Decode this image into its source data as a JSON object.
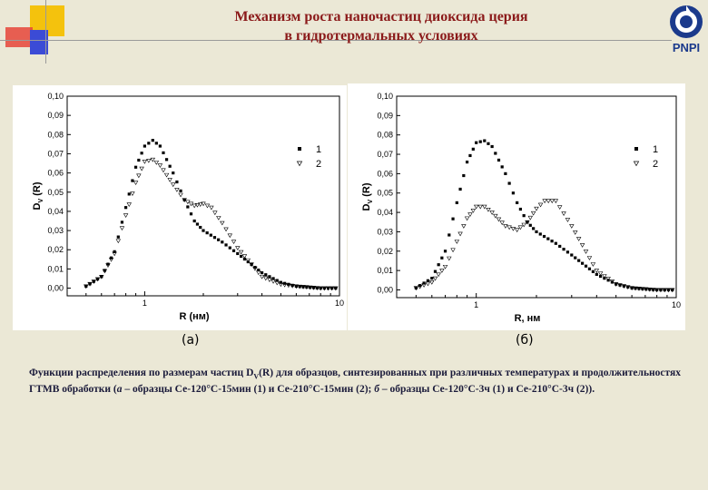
{
  "slide": {
    "title_line1": "Механизм роста наночастиц диоксида церия",
    "title_line2": "в гидротермальных условиях",
    "logo_text": "PNPI",
    "colors": {
      "title": "#8b1a1a",
      "background": "#ebe8d6",
      "deco_yellow": "#f4c20d",
      "deco_blue": "#3b4bd6",
      "deco_red": "#e6453a"
    }
  },
  "figure_labels": {
    "a": "(а)",
    "b": "(б)"
  },
  "caption": {
    "part1": "Функции распределения по размерам частиц D",
    "sub": "V",
    "part2": "(R) для образцов, синтезированных при различных температурах и продолжительностях ГТМВ обработки (",
    "a_letter": "а",
    "part3": " – образцы Се-120°С-15мин (1) и Се-210°С-15мин (2); ",
    "b_letter": "б",
    "part4": " – образцы Се-120°С-3ч (1) и Се-210°С-3ч (2))."
  },
  "chart_data": [
    {
      "type": "scatter",
      "xlabel": "R (нм)",
      "ylabel": "D",
      "ylabel_sub": "V",
      "ylabel_tail": " (R)",
      "x_scale": "log",
      "xlim": [
        0.4,
        10
      ],
      "ylim": [
        -0.004,
        0.1
      ],
      "xticks": [
        1,
        10
      ],
      "xtick_labels": [
        "1",
        "10"
      ],
      "yticks": [
        0.0,
        0.01,
        0.02,
        0.03,
        0.04,
        0.05,
        0.06,
        0.07,
        0.08,
        0.09,
        0.1
      ],
      "ytick_labels": [
        "0,00",
        "0,01",
        "0,02",
        "0,03",
        "0,04",
        "0,05",
        "0,06",
        "0,07",
        "0,08",
        "0,09",
        "0,10"
      ],
      "legend_position": "top-right",
      "series": [
        {
          "name": "1",
          "marker": "square",
          "x": [
            0.5,
            0.6,
            0.7,
            0.8,
            0.9,
            1.0,
            1.1,
            1.2,
            1.4,
            1.6,
            1.8,
            2.0,
            2.5,
            3,
            4,
            5,
            6,
            8,
            10
          ],
          "y": [
            0.001,
            0.006,
            0.019,
            0.042,
            0.063,
            0.074,
            0.077,
            0.074,
            0.06,
            0.046,
            0.035,
            0.03,
            0.024,
            0.018,
            0.008,
            0.003,
            0.001,
            0.0,
            0.0
          ]
        },
        {
          "name": "2",
          "marker": "triangle-down",
          "x": [
            0.5,
            0.6,
            0.7,
            0.8,
            0.9,
            1.0,
            1.1,
            1.2,
            1.4,
            1.6,
            1.8,
            2.0,
            2.2,
            2.5,
            3,
            4,
            5,
            6,
            8,
            10
          ],
          "y": [
            0.001,
            0.006,
            0.018,
            0.038,
            0.055,
            0.066,
            0.067,
            0.064,
            0.054,
            0.046,
            0.043,
            0.044,
            0.042,
            0.034,
            0.021,
            0.006,
            0.002,
            0.001,
            0.0,
            0.0
          ]
        }
      ]
    },
    {
      "type": "scatter",
      "xlabel": "R, нм",
      "ylabel": "D",
      "ylabel_sub": "V",
      "ylabel_tail": " (R)",
      "x_scale": "log",
      "xlim": [
        0.4,
        10
      ],
      "ylim": [
        -0.004,
        0.1
      ],
      "xticks": [
        1,
        10
      ],
      "xtick_labels": [
        "1",
        "10"
      ],
      "yticks": [
        0.0,
        0.01,
        0.02,
        0.03,
        0.04,
        0.05,
        0.06,
        0.07,
        0.08,
        0.09,
        0.1
      ],
      "ytick_labels": [
        "0,00",
        "0,01",
        "0,02",
        "0,03",
        "0,04",
        "0,05",
        "0,06",
        "0,07",
        "0,08",
        "0,09",
        "0,10"
      ],
      "legend_position": "top-right",
      "series": [
        {
          "name": "1",
          "marker": "square",
          "x": [
            0.5,
            0.6,
            0.7,
            0.8,
            0.9,
            1.0,
            1.1,
            1.2,
            1.4,
            1.6,
            1.8,
            2.0,
            2.5,
            3,
            4,
            5,
            6,
            8,
            10
          ],
          "y": [
            0.001,
            0.006,
            0.02,
            0.045,
            0.066,
            0.076,
            0.077,
            0.074,
            0.06,
            0.045,
            0.035,
            0.03,
            0.024,
            0.018,
            0.008,
            0.003,
            0.001,
            0.0,
            0.0
          ]
        },
        {
          "name": "2",
          "marker": "triangle-down",
          "x": [
            0.5,
            0.6,
            0.7,
            0.8,
            0.9,
            1.0,
            1.1,
            1.2,
            1.4,
            1.6,
            1.8,
            2.0,
            2.2,
            2.5,
            3,
            4,
            5,
            6,
            8,
            10
          ],
          "y": [
            0.001,
            0.004,
            0.012,
            0.025,
            0.037,
            0.043,
            0.043,
            0.04,
            0.033,
            0.031,
            0.035,
            0.042,
            0.046,
            0.046,
            0.033,
            0.01,
            0.003,
            0.001,
            0.0,
            0.0
          ]
        }
      ]
    }
  ]
}
